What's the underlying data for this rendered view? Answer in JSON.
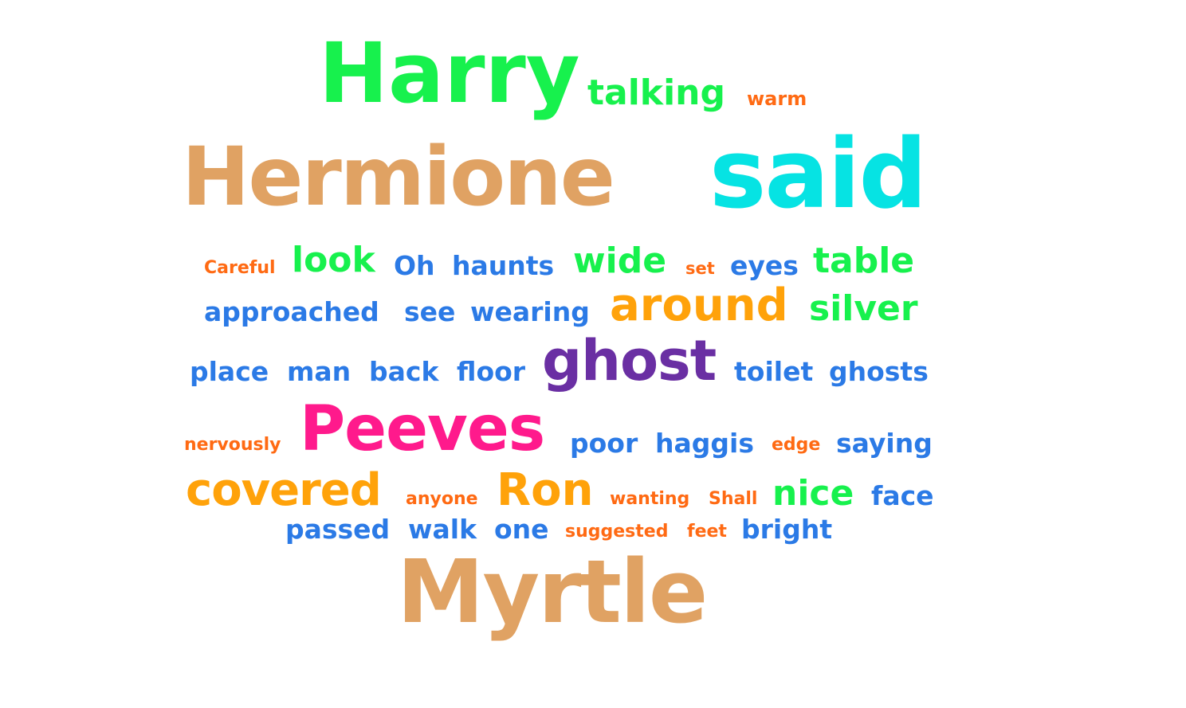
{
  "palette": {
    "green": "#17f14d",
    "tan": "#e0a263",
    "cyan": "#06e3e3",
    "blue": "#2b7ae6",
    "orange": "#ff6a13",
    "amber": "#ffa20a",
    "purple": "#6a2fa3",
    "pink": "#ff1a8c"
  },
  "words": [
    {
      "text": "Harry",
      "color": "#17f14d"
    },
    {
      "text": "talking",
      "color": "#17f14d"
    },
    {
      "text": "warm",
      "color": "#ff6a13"
    },
    {
      "text": "Hermione",
      "color": "#e0a263"
    },
    {
      "text": "said",
      "color": "#06e3e3"
    },
    {
      "text": "Careful",
      "color": "#ff6a13"
    },
    {
      "text": "look",
      "color": "#17f14d"
    },
    {
      "text": "Oh",
      "color": "#2b7ae6"
    },
    {
      "text": "haunts",
      "color": "#2b7ae6"
    },
    {
      "text": "wide",
      "color": "#17f14d"
    },
    {
      "text": "set",
      "color": "#ff6a13"
    },
    {
      "text": "eyes",
      "color": "#2b7ae6"
    },
    {
      "text": "table",
      "color": "#17f14d"
    },
    {
      "text": "approached",
      "color": "#2b7ae6"
    },
    {
      "text": "see",
      "color": "#2b7ae6"
    },
    {
      "text": "wearing",
      "color": "#2b7ae6"
    },
    {
      "text": "around",
      "color": "#ffa20a"
    },
    {
      "text": "silver",
      "color": "#17f14d"
    },
    {
      "text": "place",
      "color": "#2b7ae6"
    },
    {
      "text": "man",
      "color": "#2b7ae6"
    },
    {
      "text": "back",
      "color": "#2b7ae6"
    },
    {
      "text": "floor",
      "color": "#2b7ae6"
    },
    {
      "text": "ghost",
      "color": "#6a2fa3"
    },
    {
      "text": "toilet",
      "color": "#2b7ae6"
    },
    {
      "text": "ghosts",
      "color": "#2b7ae6"
    },
    {
      "text": "nervously",
      "color": "#ff6a13"
    },
    {
      "text": "Peeves",
      "color": "#ff1a8c"
    },
    {
      "text": "poor",
      "color": "#2b7ae6"
    },
    {
      "text": "haggis",
      "color": "#2b7ae6"
    },
    {
      "text": "edge",
      "color": "#ff6a13"
    },
    {
      "text": "saying",
      "color": "#2b7ae6"
    },
    {
      "text": "covered",
      "color": "#ffa20a"
    },
    {
      "text": "anyone",
      "color": "#ff6a13"
    },
    {
      "text": "Ron",
      "color": "#ffa20a"
    },
    {
      "text": "wanting",
      "color": "#ff6a13"
    },
    {
      "text": "Shall",
      "color": "#ff6a13"
    },
    {
      "text": "nice",
      "color": "#17f14d"
    },
    {
      "text": "face",
      "color": "#2b7ae6"
    },
    {
      "text": "passed",
      "color": "#2b7ae6"
    },
    {
      "text": "walk",
      "color": "#2b7ae6"
    },
    {
      "text": "one",
      "color": "#2b7ae6"
    },
    {
      "text": "suggested",
      "color": "#ff6a13"
    },
    {
      "text": "feet",
      "color": "#ff6a13"
    },
    {
      "text": "bright",
      "color": "#2b7ae6"
    },
    {
      "text": "Myrtle",
      "color": "#e0a263"
    }
  ]
}
